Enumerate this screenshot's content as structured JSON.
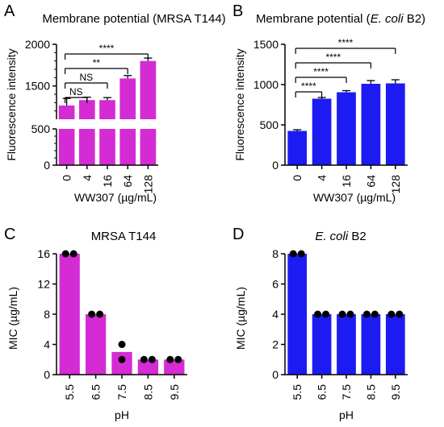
{
  "chart_data": [
    {
      "panel": "A",
      "type": "bar",
      "title": "Membrane potential (MRSA T144)",
      "xlabel": "WW307 (µg/mL)",
      "ylabel": "Fluorescence intensity",
      "categories": [
        "0",
        "4",
        "16",
        "64",
        "128"
      ],
      "values": [
        1265,
        1330,
        1330,
        1590,
        1800
      ],
      "errors": [
        85,
        35,
        30,
        35,
        35
      ],
      "axis_break": true,
      "ylim_lower": [
        0,
        500
      ],
      "ylim_upper": [
        1100,
        2000
      ],
      "yticks": [
        "0",
        "500",
        "1500",
        "2000"
      ],
      "significance": [
        {
          "from": 0,
          "to": 1,
          "label": "NS"
        },
        {
          "from": 0,
          "to": 2,
          "label": "NS"
        },
        {
          "from": 0,
          "to": 3,
          "label": "**"
        },
        {
          "from": 0,
          "to": 4,
          "label": "****"
        }
      ],
      "color": "#d42bd4",
      "grid": false
    },
    {
      "panel": "B",
      "type": "bar",
      "title": "Membrane potential (",
      "title_italic": "E. coli",
      "title_suffix": " B2)",
      "xlabel": "WW307 (µg/mL)",
      "ylabel": "Fluorescence intensity",
      "categories": [
        "0",
        "4",
        "16",
        "64",
        "128"
      ],
      "values": [
        425,
        825,
        905,
        1010,
        1015
      ],
      "errors": [
        15,
        15,
        20,
        40,
        45
      ],
      "ylim": [
        0,
        1500
      ],
      "yticks": [
        "0",
        "500",
        "1000",
        "1500"
      ],
      "significance": [
        {
          "from": 0,
          "to": 1,
          "label": "****"
        },
        {
          "from": 0,
          "to": 2,
          "label": "****"
        },
        {
          "from": 0,
          "to": 3,
          "label": "****"
        },
        {
          "from": 0,
          "to": 4,
          "label": "****"
        }
      ],
      "color": "#1c1cf2",
      "grid": false
    },
    {
      "panel": "C",
      "type": "bar",
      "title": "MRSA T144",
      "xlabel": "pH",
      "ylabel": "MIC (µg/mL)",
      "categories": [
        "5.5",
        "6.5",
        "7.5",
        "8.5",
        "9.5"
      ],
      "values": [
        16,
        8,
        3,
        2,
        2
      ],
      "points": [
        [
          16,
          16
        ],
        [
          8,
          8
        ],
        [
          4,
          2
        ],
        [
          2,
          2
        ],
        [
          2,
          2
        ]
      ],
      "ylim": [
        0,
        16
      ],
      "yticks": [
        "0",
        "4",
        "8",
        "12",
        "16"
      ],
      "color": "#d42bd4",
      "grid": false
    },
    {
      "panel": "D",
      "type": "bar",
      "title": "",
      "title_italic": "E. coli",
      "title_suffix": " B2",
      "xlabel": "pH",
      "ylabel": "MIC (µg/mL)",
      "categories": [
        "5.5",
        "6.5",
        "7.5",
        "8.5",
        "9.5"
      ],
      "values": [
        8,
        4,
        4,
        4,
        4
      ],
      "points": [
        [
          8,
          8
        ],
        [
          4,
          4
        ],
        [
          4,
          4
        ],
        [
          4,
          4
        ],
        [
          4,
          4
        ]
      ],
      "ylim": [
        0,
        8
      ],
      "yticks": [
        "0",
        "2",
        "4",
        "6",
        "8"
      ],
      "color": "#1c1cf2",
      "grid": false
    }
  ]
}
